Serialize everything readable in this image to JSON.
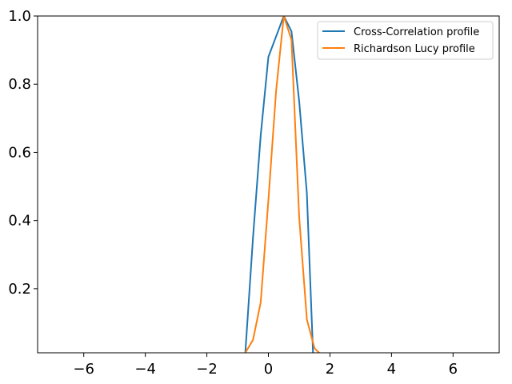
{
  "chart_data": {
    "type": "line",
    "title": "",
    "xlabel": "",
    "ylabel": "",
    "xlim": [
      -7.5,
      7.5
    ],
    "ylim": [
      0.012,
      1.0
    ],
    "xticks": [
      -6,
      -4,
      -2,
      0,
      2,
      4,
      6
    ],
    "xtick_labels": [
      "−6",
      "−4",
      "−2",
      "0",
      "2",
      "4",
      "6"
    ],
    "yticks": [
      0.2,
      0.4,
      0.6,
      0.8,
      1.0
    ],
    "ytick_labels": [
      "0.2",
      "0.4",
      "0.6",
      "0.8",
      "1.0"
    ],
    "grid": false,
    "legend_position": "top-right",
    "series": [
      {
        "name": "Cross-Correlation profile",
        "color": "#1f77b4",
        "x": [
          -0.75,
          -0.5,
          -0.25,
          0.0,
          0.25,
          0.5,
          0.75,
          1.0,
          1.25,
          1.45
        ],
        "y": [
          0.012,
          0.35,
          0.65,
          0.88,
          0.94,
          1.0,
          0.955,
          0.75,
          0.48,
          0.012
        ]
      },
      {
        "name": "Richardson Lucy profile",
        "color": "#ff7f0e",
        "x": [
          -0.75,
          -0.5,
          -0.25,
          0.0,
          0.25,
          0.5,
          0.75,
          1.0,
          1.25,
          1.5,
          1.65
        ],
        "y": [
          0.012,
          0.05,
          0.16,
          0.46,
          0.78,
          1.0,
          0.93,
          0.41,
          0.11,
          0.025,
          0.012
        ]
      }
    ]
  }
}
